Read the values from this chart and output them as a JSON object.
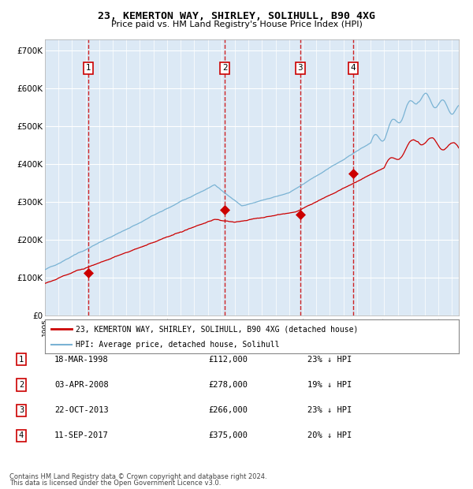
{
  "title": "23, KEMERTON WAY, SHIRLEY, SOLIHULL, B90 4XG",
  "subtitle": "Price paid vs. HM Land Registry's House Price Index (HPI)",
  "background_color": "#ffffff",
  "plot_bg_color": "#dce9f5",
  "grid_color": "#ffffff",
  "ylim": [
    0,
    730000
  ],
  "yticks": [
    0,
    100000,
    200000,
    300000,
    400000,
    500000,
    600000,
    700000
  ],
  "ytick_labels": [
    "£0",
    "£100K",
    "£200K",
    "£300K",
    "£400K",
    "£500K",
    "£600K",
    "£700K"
  ],
  "legend_line1": "23, KEMERTON WAY, SHIRLEY, SOLIHULL, B90 4XG (detached house)",
  "legend_line2": "HPI: Average price, detached house, Solihull",
  "legend_color1": "#cc0000",
  "legend_color2": "#7ab3d4",
  "transactions": [
    {
      "num": 1,
      "date_label": "18-MAR-1998",
      "price": 112000,
      "pct": "23% ↓ HPI",
      "x_year": 1998.21
    },
    {
      "num": 2,
      "date_label": "03-APR-2008",
      "price": 278000,
      "pct": "19% ↓ HPI",
      "x_year": 2008.25
    },
    {
      "num": 3,
      "date_label": "22-OCT-2013",
      "price": 266000,
      "pct": "23% ↓ HPI",
      "x_year": 2013.81
    },
    {
      "num": 4,
      "date_label": "11-SEP-2017",
      "price": 375000,
      "pct": "20% ↓ HPI",
      "x_year": 2017.7
    }
  ],
  "transaction_prices": [
    112000,
    278000,
    266000,
    375000
  ],
  "footer1": "Contains HM Land Registry data © Crown copyright and database right 2024.",
  "footer2": "This data is licensed under the Open Government Licence v3.0.",
  "xlim_start": 1995.0,
  "xlim_end": 2025.5
}
